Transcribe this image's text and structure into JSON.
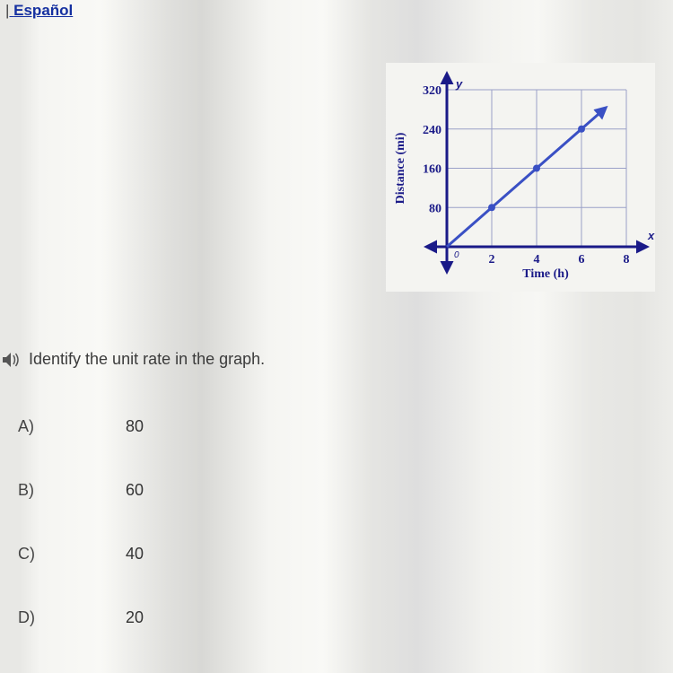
{
  "header": {
    "separator": "| ",
    "language_link": "Español"
  },
  "question": {
    "prompt": "Identify the unit rate in the graph."
  },
  "options": [
    {
      "letter": "A)",
      "value": "80"
    },
    {
      "letter": "B)",
      "value": "60"
    },
    {
      "letter": "C)",
      "value": "40"
    },
    {
      "letter": "D)",
      "value": "20"
    }
  ],
  "chart": {
    "type": "line",
    "y_axis_title": "Distance (mi)",
    "x_axis_title": "Time (h)",
    "y_label_top": "y",
    "x_label_right": "x",
    "origin_label": "0",
    "x_ticks": [
      "2",
      "4",
      "6",
      "8"
    ],
    "y_ticks": [
      "80",
      "160",
      "240",
      "320"
    ],
    "xlim": [
      0,
      8
    ],
    "ylim": [
      0,
      320
    ],
    "series": {
      "points": [
        [
          0,
          0
        ],
        [
          2,
          80
        ],
        [
          4,
          160
        ],
        [
          6,
          240
        ]
      ],
      "arrow_end": [
        7,
        280
      ]
    },
    "colors": {
      "axis": "#1a1a88",
      "grid": "#9aa0c8",
      "line": "#3a50c4",
      "point_fill": "#3a50c4",
      "text": "#1a1a88",
      "bg": "#f4f4f1"
    },
    "style": {
      "line_width": 3,
      "point_radius": 4,
      "axis_width": 3,
      "grid_width": 1,
      "tick_fontsize": 14,
      "title_fontsize": 14,
      "title_weight": "bold"
    }
  }
}
